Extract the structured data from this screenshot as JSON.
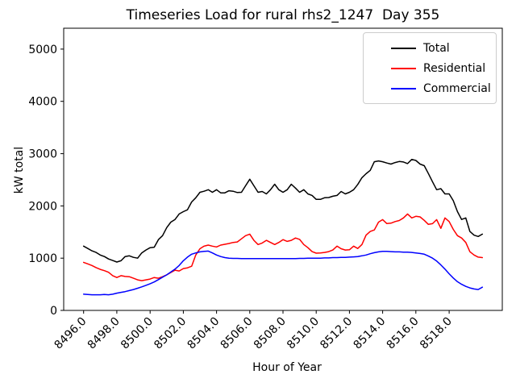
{
  "figure": {
    "title": "Timeseries Load for rural rhs2_1247  Day 355"
  },
  "chart_data": {
    "type": "line",
    "title": "Timeseries Load for rural rhs2_1247  Day 355",
    "xlabel": "Hour of Year",
    "ylabel": "kW total",
    "xlim": [
      8494.8,
      8521.2
    ],
    "ylim": [
      0,
      5400
    ],
    "x_ticks": [
      8496,
      8498,
      8500,
      8502,
      8504,
      8506,
      8508,
      8510,
      8512,
      8514,
      8516,
      8518
    ],
    "y_ticks": [
      0,
      1000,
      2000,
      3000,
      4000,
      5000
    ],
    "grid": false,
    "legend_position": "upper-right",
    "x": [
      8496.0,
      8496.25,
      8496.5,
      8496.75,
      8497.0,
      8497.25,
      8497.5,
      8497.75,
      8498.0,
      8498.25,
      8498.5,
      8498.75,
      8499.0,
      8499.25,
      8499.5,
      8499.75,
      8500.0,
      8500.25,
      8500.5,
      8500.75,
      8501.0,
      8501.25,
      8501.5,
      8501.75,
      8502.0,
      8502.25,
      8502.5,
      8502.75,
      8503.0,
      8503.25,
      8503.5,
      8503.75,
      8504.0,
      8504.25,
      8504.5,
      8504.75,
      8505.0,
      8505.25,
      8505.5,
      8505.75,
      8506.0,
      8506.25,
      8506.5,
      8506.75,
      8507.0,
      8507.25,
      8507.5,
      8507.75,
      8508.0,
      8508.25,
      8508.5,
      8508.75,
      8509.0,
      8509.25,
      8509.5,
      8509.75,
      8510.0,
      8510.25,
      8510.5,
      8510.75,
      8511.0,
      8511.25,
      8511.5,
      8511.75,
      8512.0,
      8512.25,
      8512.5,
      8512.75,
      8513.0,
      8513.25,
      8513.5,
      8513.75,
      8514.0,
      8514.25,
      8514.5,
      8514.75,
      8515.0,
      8515.25,
      8515.5,
      8515.75,
      8516.0,
      8516.25,
      8516.5,
      8516.75,
      8517.0,
      8517.25,
      8517.5,
      8517.75,
      8518.0,
      8518.25,
      8518.5,
      8518.75,
      8519.0,
      8519.25,
      8519.5,
      8519.75,
      8520.0
    ],
    "series": [
      {
        "name": "Total",
        "color": "#000000",
        "values": [
          1230,
          1185,
          1140,
          1110,
          1060,
          1030,
          985,
          955,
          925,
          950,
          1030,
          1045,
          1015,
          1000,
          1100,
          1155,
          1200,
          1210,
          1355,
          1430,
          1585,
          1690,
          1740,
          1845,
          1890,
          1925,
          2075,
          2155,
          2260,
          2280,
          2310,
          2260,
          2310,
          2250,
          2250,
          2290,
          2280,
          2255,
          2260,
          2385,
          2510,
          2385,
          2260,
          2275,
          2230,
          2310,
          2415,
          2310,
          2260,
          2310,
          2415,
          2340,
          2260,
          2310,
          2230,
          2200,
          2125,
          2125,
          2155,
          2160,
          2185,
          2200,
          2275,
          2230,
          2260,
          2310,
          2410,
          2540,
          2615,
          2680,
          2845,
          2860,
          2845,
          2820,
          2800,
          2830,
          2850,
          2840,
          2810,
          2890,
          2870,
          2800,
          2770,
          2620,
          2460,
          2310,
          2330,
          2230,
          2230,
          2100,
          1890,
          1740,
          1770,
          1510,
          1440,
          1415,
          1460
        ]
      },
      {
        "name": "Residential",
        "color": "#ff0000",
        "values": [
          920,
          890,
          860,
          820,
          785,
          760,
          730,
          665,
          630,
          665,
          650,
          645,
          615,
          585,
          570,
          585,
          600,
          630,
          615,
          645,
          680,
          725,
          770,
          755,
          800,
          815,
          845,
          1060,
          1180,
          1230,
          1250,
          1230,
          1215,
          1250,
          1265,
          1280,
          1300,
          1310,
          1370,
          1430,
          1460,
          1340,
          1260,
          1290,
          1340,
          1300,
          1260,
          1300,
          1355,
          1320,
          1340,
          1385,
          1360,
          1260,
          1200,
          1125,
          1095,
          1100,
          1110,
          1125,
          1155,
          1230,
          1180,
          1155,
          1160,
          1230,
          1185,
          1260,
          1440,
          1510,
          1540,
          1690,
          1738,
          1662,
          1670,
          1700,
          1720,
          1769,
          1846,
          1769,
          1800,
          1790,
          1723,
          1646,
          1660,
          1738,
          1570,
          1769,
          1700,
          1550,
          1430,
          1385,
          1300,
          1123,
          1060,
          1020,
          1010
        ]
      },
      {
        "name": "Commercial",
        "color": "#0000ff",
        "values": [
          310,
          305,
          300,
          300,
          300,
          305,
          300,
          310,
          330,
          345,
          360,
          380,
          400,
          425,
          450,
          480,
          510,
          545,
          590,
          635,
          680,
          735,
          790,
          860,
          950,
          1020,
          1075,
          1100,
          1120,
          1130,
          1135,
          1100,
          1060,
          1030,
          1010,
          1000,
          995,
          995,
          990,
          990,
          990,
          990,
          990,
          990,
          990,
          990,
          990,
          990,
          990,
          990,
          990,
          990,
          995,
          995,
          1000,
          1000,
          1000,
          1000,
          1005,
          1005,
          1010,
          1010,
          1015,
          1015,
          1020,
          1025,
          1030,
          1045,
          1060,
          1085,
          1105,
          1120,
          1130,
          1130,
          1125,
          1120,
          1120,
          1115,
          1115,
          1110,
          1100,
          1090,
          1075,
          1040,
          1000,
          945,
          870,
          790,
          700,
          620,
          550,
          500,
          460,
          430,
          410,
          400,
          445
        ]
      }
    ]
  }
}
